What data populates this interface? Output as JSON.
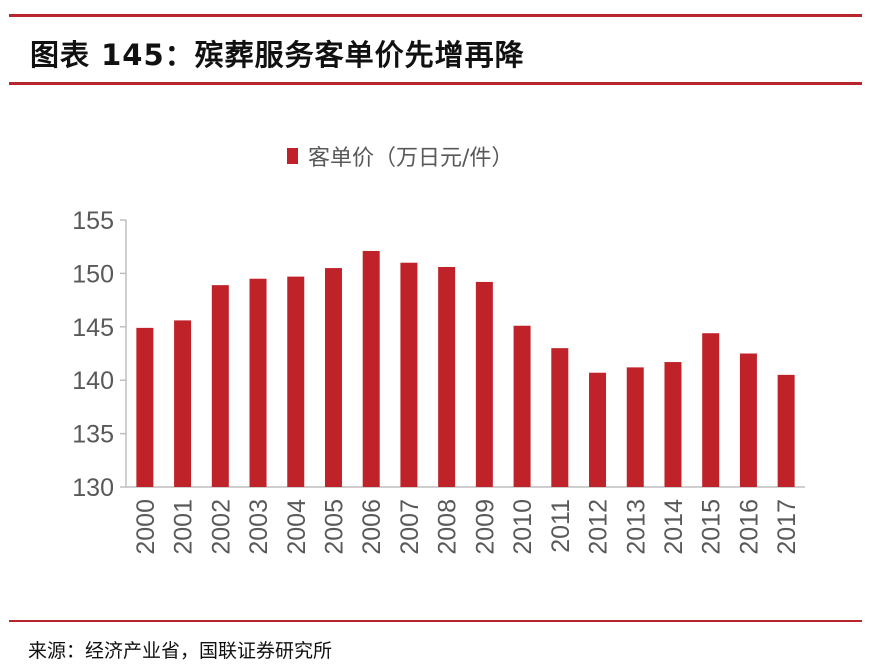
{
  "title": "图表 145：殡葬服务客单价先增再降",
  "source": "来源：经济产业省，国联证券研究所",
  "colors": {
    "bar": "#c0222a",
    "rule": "#b8252d",
    "axis_text": "#595959"
  },
  "chart_data": {
    "type": "bar",
    "title": "",
    "legend": [
      "客单价（万日元/件）"
    ],
    "legend_position": "top-center",
    "categories": [
      "2000",
      "2001",
      "2002",
      "2003",
      "2004",
      "2005",
      "2006",
      "2007",
      "2008",
      "2009",
      "2010",
      "2011",
      "2012",
      "2013",
      "2014",
      "2015",
      "2016",
      "2017"
    ],
    "series": [
      {
        "name": "客单价（万日元/件）",
        "values": [
          144.9,
          145.6,
          148.9,
          149.5,
          149.7,
          150.5,
          152.1,
          151.0,
          150.6,
          149.2,
          145.1,
          143.0,
          140.7,
          141.2,
          141.7,
          144.4,
          142.5,
          140.5
        ]
      }
    ],
    "ylim": [
      130,
      155
    ],
    "yticks": [
      130,
      135,
      140,
      145,
      150,
      155
    ],
    "xlabel": "",
    "ylabel": "",
    "grid": false
  }
}
